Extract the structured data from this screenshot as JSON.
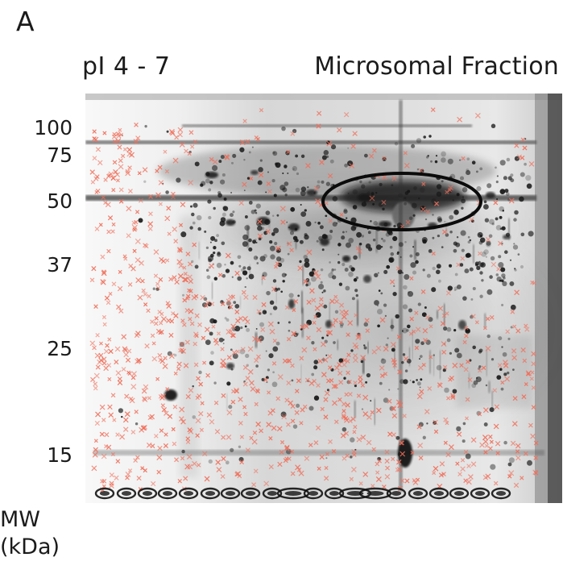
{
  "figure": {
    "panel_letter": "A",
    "ph_range_label": "pI 4 - 7",
    "sample_label": "Microsomal Fraction",
    "mw_axis_label_line1": "MW",
    "mw_axis_label_line2": "(kDa)",
    "mw_markers": [
      "100",
      "75",
      "50",
      "37",
      "25",
      "15"
    ],
    "colors": {
      "gel_background": "#f2f2f2",
      "spot_dark": "#151515",
      "annotation_cross": "#ef6f5b",
      "highlight_ellipse": "#0b0b0b"
    }
  }
}
